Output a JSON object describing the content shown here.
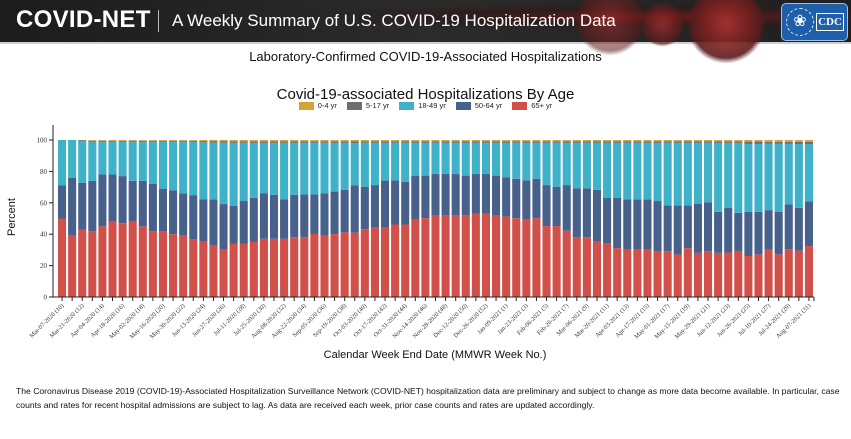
{
  "header": {
    "brand": "COVID-NET",
    "subtitle": "A Weekly Summary of U.S. COVID-19 Hospitalization Data",
    "logo_label": "CDC"
  },
  "page_title": "Laboratory-Confirmed COVID-19-Associated Hospitalizations",
  "footnote": "The Coronavirus Disease 2019 (COVID-19)-Associated Hospitalization Surveillance Network (COVID-NET) hospitalization data are preliminary and subject to change as more data become available. In particular, case counts and rates for recent hospital admissions are subject to lag. As data are received each week, prior case counts and rates are updated accordingly.",
  "chart_data": {
    "type": "bar",
    "stacked": true,
    "title": "Covid-19-associated Hospitalizations By Age",
    "xlabel": "Calendar Week End Date (MMWR Week No.)",
    "ylabel": "Percent",
    "ylim": [
      0,
      100
    ],
    "yticks": [
      0,
      20,
      40,
      60,
      80,
      100
    ],
    "grid": false,
    "legend_position": "top-center",
    "tick_labels": [
      "Mar-07-2020 (10)",
      "Mar-21-2020 (12)",
      "Apr-04-2020 (14)",
      "Apr-18-2020 (16)",
      "May-02-2020 (18)",
      "May-16-2020 (20)",
      "May-30-2020 (22)",
      "Jun-13-2020 (24)",
      "Jun-27-2020 (26)",
      "Jul-11-2020 (28)",
      "Jul-25-2020 (30)",
      "Aug-08-2020 (32)",
      "Aug-22-2020 (34)",
      "Sep-05-2020 (36)",
      "Sep-19-2020 (38)",
      "Oct-03-2020 (40)",
      "Oct-17-2020 (42)",
      "Oct-31-2020 (44)",
      "Nov-14-2020 (46)",
      "Nov-28-2020 (48)",
      "Dec-12-2020 (50)",
      "Dec-26-2020 (52)",
      "Jan-09-2021 (1)",
      "Jan-23-2021 (3)",
      "Feb-06-2021 (5)",
      "Feb-20-2021 (7)",
      "Mar-06-2021 (9)",
      "Mar-20-2021 (11)",
      "Apr-03-2021 (13)",
      "Apr-17-2021 (15)",
      "May-01-2021 (17)",
      "May-15-2021 (19)",
      "May-29-2021 (21)",
      "Jun-12-2021 (23)",
      "Jun-26-2021 (25)",
      "Jul-10-2021 (27)",
      "Jul-24-2021 (29)",
      "Aug-07-2021 (31)"
    ],
    "n_weeks": 75,
    "series": [
      {
        "name": "65+ yr",
        "color": "#d2504a",
        "values": [
          50,
          39,
          43,
          42,
          45,
          48,
          47,
          48,
          45,
          42,
          42,
          40,
          39,
          37,
          35,
          33,
          30,
          34,
          34,
          35,
          37,
          37,
          37,
          38,
          38,
          40,
          39,
          40,
          41,
          41,
          43,
          44,
          44,
          46,
          46,
          49,
          50,
          52,
          52,
          52,
          52,
          53,
          53,
          52,
          51,
          50,
          49,
          50,
          45,
          45,
          42,
          38,
          38,
          35,
          34,
          31,
          30,
          30,
          30,
          29,
          29,
          27,
          31,
          28,
          29,
          28,
          28,
          29,
          26,
          27,
          30,
          27,
          30,
          29,
          32
        ]
      },
      {
        "name": "50-64 yr",
        "color": "#47618b",
        "values": [
          21,
          37,
          30,
          32,
          33,
          30,
          30,
          26,
          29,
          30,
          27,
          28,
          27,
          28,
          27,
          29,
          29,
          24,
          27,
          28,
          29,
          28,
          25,
          27,
          27,
          25,
          27,
          27,
          27,
          30,
          27,
          27,
          30,
          28,
          27,
          28,
          27,
          26,
          26,
          26,
          25,
          25,
          25,
          25,
          25,
          25,
          25,
          25,
          26,
          25,
          29,
          31,
          31,
          33,
          29,
          32,
          32,
          32,
          32,
          32,
          29,
          31,
          27,
          31,
          31,
          26,
          28,
          24,
          28,
          27,
          25,
          27,
          28,
          27,
          28
        ]
      },
      {
        "name": "18-49 yr",
        "color": "#3fb1c9",
        "values": [
          29,
          24,
          27,
          25,
          21,
          21,
          22,
          25,
          25,
          27,
          30,
          31,
          33,
          34,
          36,
          36,
          39,
          40,
          37,
          35,
          32,
          33,
          36,
          33,
          33,
          33,
          32,
          31,
          30,
          27,
          28,
          27,
          24,
          24,
          25,
          21,
          21,
          20,
          20,
          20,
          21,
          20,
          20,
          21,
          22,
          23,
          24,
          23,
          27,
          28,
          27,
          29,
          29,
          30,
          35,
          35,
          36,
          36,
          36,
          37,
          40,
          40,
          40,
          39,
          38,
          44,
          41,
          44,
          43,
          43,
          42,
          43,
          38,
          40,
          36
        ]
      },
      {
        "name": "5-17 yr",
        "color": "#6e6e6e",
        "values": [
          0,
          0,
          0.5,
          0.5,
          0.5,
          0.5,
          0.5,
          0.5,
          0.5,
          0.5,
          0.5,
          0.5,
          0.5,
          0.7,
          0.8,
          1,
          1,
          1,
          1,
          1,
          1,
          1,
          1,
          1,
          0.8,
          0.8,
          1,
          1,
          0.8,
          1.2,
          0.8,
          0.8,
          1,
          0.8,
          0.8,
          0.8,
          0.8,
          0.8,
          0.8,
          0.8,
          0.8,
          0.8,
          0.8,
          0.8,
          0.8,
          0.8,
          0.8,
          0.8,
          0.8,
          0.8,
          0.8,
          0.8,
          0.8,
          0.8,
          0.8,
          0.8,
          0.8,
          0.8,
          0.8,
          1,
          0.8,
          0.8,
          0.8,
          0.8,
          0.8,
          0.8,
          1,
          1,
          1.5,
          1.5,
          1.2,
          1.2,
          1.2,
          1.3,
          1.5
        ]
      },
      {
        "name": "0-4 yr",
        "color": "#d4a336",
        "values": [
          0,
          0,
          0,
          0.5,
          0.5,
          0.5,
          0.5,
          0.5,
          0.5,
          0.5,
          0.5,
          0.5,
          0.5,
          0.5,
          0.7,
          0.7,
          0.7,
          0.8,
          0.8,
          0.8,
          0.8,
          0.8,
          0.8,
          0.8,
          0.8,
          0.8,
          0.8,
          0.8,
          0.8,
          0.8,
          0.8,
          0.8,
          0.8,
          0.8,
          0.8,
          0.8,
          0.8,
          0.8,
          0.8,
          0.8,
          0.8,
          0.8,
          0.8,
          0.8,
          0.8,
          0.8,
          0.8,
          0.8,
          0.8,
          0.8,
          0.8,
          0.8,
          0.8,
          0.8,
          0.8,
          0.8,
          0.8,
          0.8,
          0.8,
          0.8,
          0.8,
          0.8,
          0.8,
          0.8,
          0.8,
          0.8,
          0.8,
          0.8,
          1,
          1,
          1.2,
          1.2,
          1.2,
          1.2,
          1.2
        ]
      }
    ],
    "legend": [
      {
        "label": "0-4 yr",
        "color": "#d4a336"
      },
      {
        "label": "5-17 yr",
        "color": "#6e6e6e"
      },
      {
        "label": "18-49 yr",
        "color": "#3fb1c9"
      },
      {
        "label": "50-64 yr",
        "color": "#47618b"
      },
      {
        "label": "65+ yr",
        "color": "#d2504a"
      }
    ]
  }
}
